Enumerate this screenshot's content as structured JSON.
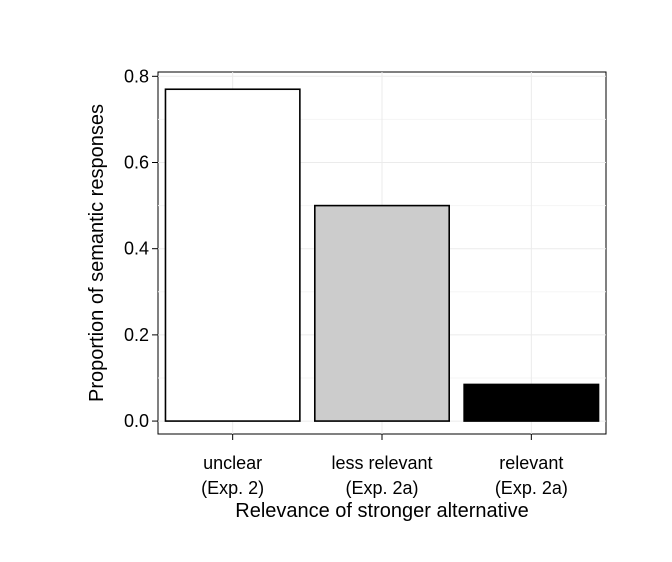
{
  "chart_data": {
    "type": "bar",
    "title": "",
    "xlabel": "Relevance of stronger alternative",
    "ylabel": "Proportion of semantic responses",
    "ylim": [
      -0.03,
      0.81
    ],
    "y_ticks": [
      "0.0",
      "0.2",
      "0.4",
      "0.6",
      "0.8"
    ],
    "grid": true,
    "legend": "none",
    "categories": [
      {
        "line1": "unclear",
        "line2": "(Exp. 2)"
      },
      {
        "line1": "less relevant",
        "line2": "(Exp. 2a)"
      },
      {
        "line1": "relevant",
        "line2": "(Exp. 2a)"
      }
    ],
    "values": [
      0.77,
      0.5,
      0.085
    ],
    "bar_colors": [
      "#ffffff",
      "#cccccc",
      "#000000"
    ],
    "bar_outline": "#000000"
  }
}
